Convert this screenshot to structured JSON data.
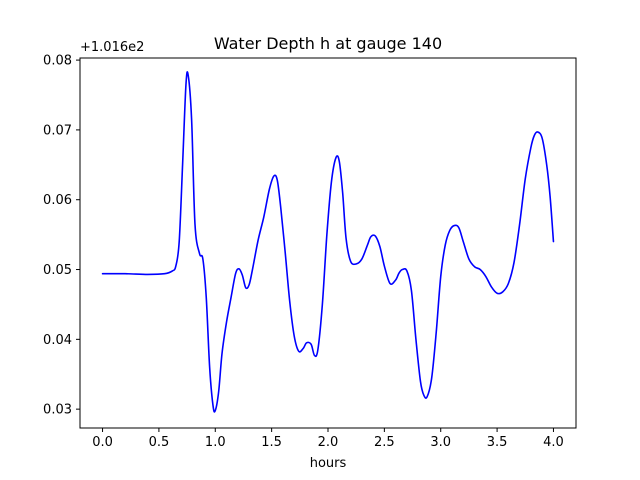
{
  "chart_data": {
    "type": "line",
    "title": "Water Depth h at gauge 140",
    "xlabel": "hours",
    "ylabel": "",
    "y_offset_label": "+1.016e2",
    "y_offset": 101.6,
    "xlim": [
      -0.2,
      4.2
    ],
    "ylim": [
      0.0273,
      0.0803
    ],
    "x_ticks": [
      0.0,
      0.5,
      1.0,
      1.5,
      2.0,
      2.5,
      3.0,
      3.5,
      4.0
    ],
    "x_tick_labels": [
      "0.0",
      "0.5",
      "1.0",
      "1.5",
      "2.0",
      "2.5",
      "3.0",
      "3.5",
      "4.0"
    ],
    "y_ticks": [
      0.03,
      0.04,
      0.05,
      0.06,
      0.07,
      0.08
    ],
    "y_tick_labels": [
      "0.03",
      "0.04",
      "0.05",
      "0.06",
      "0.07",
      "0.08"
    ],
    "grid": false,
    "legend": "none",
    "colors": {
      "line": "#0000ff",
      "axes": "#000000",
      "background": "#ffffff"
    },
    "series": [
      {
        "x": [
          0.0,
          0.2,
          0.4,
          0.55,
          0.62,
          0.65,
          0.68,
          0.71,
          0.74,
          0.76,
          0.79,
          0.82,
          0.86,
          0.89,
          0.92,
          0.95,
          0.98,
          1.0,
          1.03,
          1.06,
          1.1,
          1.14,
          1.18,
          1.21,
          1.24,
          1.27,
          1.3,
          1.33,
          1.38,
          1.43,
          1.48,
          1.52,
          1.55,
          1.58,
          1.62,
          1.66,
          1.7,
          1.74,
          1.78,
          1.81,
          1.85,
          1.88,
          1.91,
          1.95,
          1.99,
          2.03,
          2.07,
          2.1,
          2.13,
          2.16,
          2.2,
          2.25,
          2.3,
          2.35,
          2.38,
          2.42,
          2.46,
          2.5,
          2.55,
          2.6,
          2.63,
          2.66,
          2.7,
          2.74,
          2.78,
          2.82,
          2.85,
          2.88,
          2.92,
          2.96,
          3.0,
          3.04,
          3.08,
          3.12,
          3.16,
          3.2,
          3.25,
          3.3,
          3.35,
          3.4,
          3.45,
          3.5,
          3.55,
          3.6,
          3.65,
          3.7,
          3.75,
          3.8,
          3.83,
          3.86,
          3.9,
          3.94,
          3.97,
          4.0
        ],
        "y": [
          0.0494,
          0.0494,
          0.0493,
          0.0494,
          0.0498,
          0.0505,
          0.054,
          0.065,
          0.0765,
          0.0778,
          0.0715,
          0.0565,
          0.0523,
          0.0515,
          0.046,
          0.036,
          0.0305,
          0.0298,
          0.0325,
          0.038,
          0.0425,
          0.046,
          0.0494,
          0.0501,
          0.0492,
          0.0474,
          0.0478,
          0.05,
          0.0542,
          0.0575,
          0.0615,
          0.0634,
          0.0628,
          0.059,
          0.0525,
          0.0455,
          0.0405,
          0.0383,
          0.0387,
          0.0395,
          0.0393,
          0.0377,
          0.0385,
          0.045,
          0.055,
          0.0625,
          0.066,
          0.0655,
          0.061,
          0.0545,
          0.0512,
          0.0508,
          0.0515,
          0.0535,
          0.0547,
          0.0548,
          0.0533,
          0.0505,
          0.048,
          0.0485,
          0.0495,
          0.05,
          0.0498,
          0.047,
          0.04,
          0.034,
          0.032,
          0.0318,
          0.0345,
          0.041,
          0.049,
          0.0535,
          0.0556,
          0.0563,
          0.056,
          0.054,
          0.0515,
          0.0504,
          0.05,
          0.049,
          0.0475,
          0.0466,
          0.0468,
          0.048,
          0.051,
          0.0565,
          0.063,
          0.0675,
          0.0692,
          0.0697,
          0.0688,
          0.065,
          0.0605,
          0.054
        ]
      }
    ]
  }
}
